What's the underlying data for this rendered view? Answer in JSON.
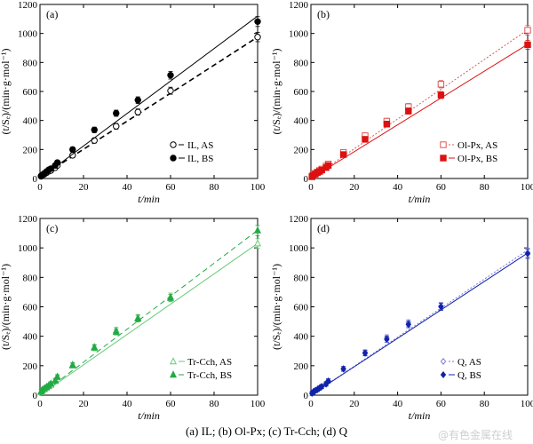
{
  "caption": "(a) IL; (b) Ol-Px; (c) Tr-Cch; (d) Q",
  "watermark": "@有色金属在线",
  "chart_data": [
    {
      "panel": "(a)",
      "type": "scatter",
      "xlabel": "t/min",
      "ylabel": "(t/Sₑ)/(min·g·mol⁻¹)",
      "xlim": [
        0,
        100
      ],
      "ylim": [
        0,
        1200
      ],
      "xticks": [
        0,
        20,
        40,
        60,
        80,
        100
      ],
      "yticks": [
        0,
        200,
        400,
        600,
        800,
        1000,
        1200
      ],
      "legend_position": "bottom-right",
      "series": [
        {
          "name": "IL, AS",
          "color": "#000000",
          "marker": "circle-open",
          "line": "dashed",
          "x": [
            0.5,
            1,
            2,
            3,
            4,
            5,
            7,
            8,
            15,
            25,
            35,
            45,
            60,
            100
          ],
          "y": [
            15,
            20,
            30,
            40,
            50,
            55,
            75,
            90,
            160,
            262,
            360,
            458,
            605,
            975
          ],
          "fit": [
            [
              0,
              8
            ],
            [
              100,
              975
            ]
          ]
        },
        {
          "name": "IL, BS",
          "color": "#000000",
          "marker": "circle-filled",
          "line": "solid",
          "x": [
            0.5,
            1,
            2,
            3,
            4,
            5,
            7,
            8,
            15,
            25,
            35,
            45,
            60,
            100
          ],
          "y": [
            18,
            25,
            35,
            48,
            60,
            68,
            90,
            110,
            200,
            335,
            450,
            540,
            712,
            1082
          ],
          "fit": [
            [
              0,
              0
            ],
            [
              100,
              1120
            ]
          ]
        }
      ]
    },
    {
      "panel": "(b)",
      "type": "scatter",
      "xlabel": "t/min",
      "ylabel": "(t/Sₑ)/(min·g·mol⁻¹)",
      "xlim": [
        0,
        100
      ],
      "ylim": [
        0,
        1200
      ],
      "xticks": [
        0,
        20,
        40,
        60,
        80,
        100
      ],
      "yticks": [
        0,
        200,
        400,
        600,
        800,
        1000,
        1200
      ],
      "legend_position": "bottom-right",
      "series": [
        {
          "name": "Ol-Px, AS",
          "color": "#e05555",
          "marker": "square-open",
          "line": "dotted",
          "x": [
            0.5,
            1,
            2,
            3,
            4,
            5,
            7,
            8,
            15,
            25,
            35,
            45,
            60,
            100
          ],
          "y": [
            15,
            25,
            35,
            45,
            55,
            65,
            85,
            100,
            180,
            295,
            395,
            495,
            650,
            1022
          ],
          "fit": [
            [
              0,
              0
            ],
            [
              100,
              1025
            ]
          ]
        },
        {
          "name": "Ol-Px, BS",
          "color": "#dd1111",
          "marker": "square-filled",
          "line": "solid",
          "x": [
            0.5,
            1,
            2,
            3,
            4,
            5,
            7,
            8,
            15,
            25,
            35,
            45,
            60,
            100
          ],
          "y": [
            12,
            20,
            30,
            40,
            48,
            58,
            75,
            90,
            165,
            270,
            375,
            465,
            575,
            922
          ],
          "fit": [
            [
              0,
              0
            ],
            [
              100,
              925
            ]
          ]
        }
      ]
    },
    {
      "panel": "(c)",
      "type": "scatter",
      "xlabel": "t/min",
      "ylabel": "(t/Sₑ)/(min·g·mol⁻¹)",
      "xlim": [
        0,
        100
      ],
      "ylim": [
        0,
        1200
      ],
      "xticks": [
        0,
        20,
        40,
        60,
        80,
        100
      ],
      "yticks": [
        0,
        200,
        400,
        600,
        800,
        1000,
        1200
      ],
      "legend_position": "bottom-right",
      "series": [
        {
          "name": "Tr-Cch, AS",
          "color": "#66cc77",
          "marker": "triangle-open",
          "line": "solid",
          "x": [
            0.5,
            1,
            2,
            3,
            4,
            5,
            7,
            8,
            15,
            25,
            35,
            45,
            60,
            100
          ],
          "y": [
            20,
            30,
            40,
            50,
            60,
            70,
            95,
            120,
            200,
            320,
            440,
            525,
            668,
            1030
          ],
          "fit": [
            [
              0,
              0
            ],
            [
              100,
              1030
            ]
          ]
        },
        {
          "name": "Tr-Cch, BS",
          "color": "#22aa44",
          "marker": "triangle-filled",
          "line": "dashed",
          "x": [
            0.5,
            1,
            2,
            3,
            4,
            5,
            7,
            8,
            15,
            25,
            35,
            45,
            60,
            100
          ],
          "y": [
            25,
            35,
            45,
            55,
            65,
            78,
            100,
            125,
            205,
            325,
            430,
            520,
            660,
            1118
          ],
          "fit": [
            [
              0,
              0
            ],
            [
              100,
              1120
            ]
          ]
        }
      ]
    },
    {
      "panel": "(d)",
      "type": "scatter",
      "xlabel": "t/min",
      "ylabel": "(t/Sₑ)/(min·g·mol⁻¹)",
      "xlim": [
        0,
        100
      ],
      "ylim": [
        0,
        1200
      ],
      "xticks": [
        0,
        20,
        40,
        60,
        80,
        100
      ],
      "yticks": [
        0,
        200,
        400,
        600,
        800,
        1000,
        1200
      ],
      "legend_position": "bottom-right",
      "series": [
        {
          "name": "Q, AS",
          "color": "#7777dd",
          "marker": "diamond-open",
          "line": "dotted",
          "x": [
            0.5,
            1,
            2,
            3,
            4,
            5,
            7,
            8,
            15,
            25,
            35,
            45,
            60,
            100
          ],
          "y": [
            15,
            22,
            32,
            40,
            50,
            60,
            80,
            98,
            180,
            290,
            390,
            490,
            605,
            968
          ],
          "fit": [
            [
              0,
              0
            ],
            [
              100,
              985
            ]
          ]
        },
        {
          "name": "Q, BS",
          "color": "#1122aa",
          "marker": "diamond-filled",
          "line": "solid",
          "x": [
            0.5,
            1,
            2,
            3,
            4,
            5,
            7,
            8,
            15,
            25,
            35,
            45,
            60,
            100
          ],
          "y": [
            12,
            20,
            30,
            38,
            48,
            58,
            75,
            95,
            178,
            285,
            380,
            480,
            600,
            960
          ],
          "fit": [
            [
              0,
              0
            ],
            [
              100,
              965
            ]
          ]
        }
      ]
    }
  ]
}
